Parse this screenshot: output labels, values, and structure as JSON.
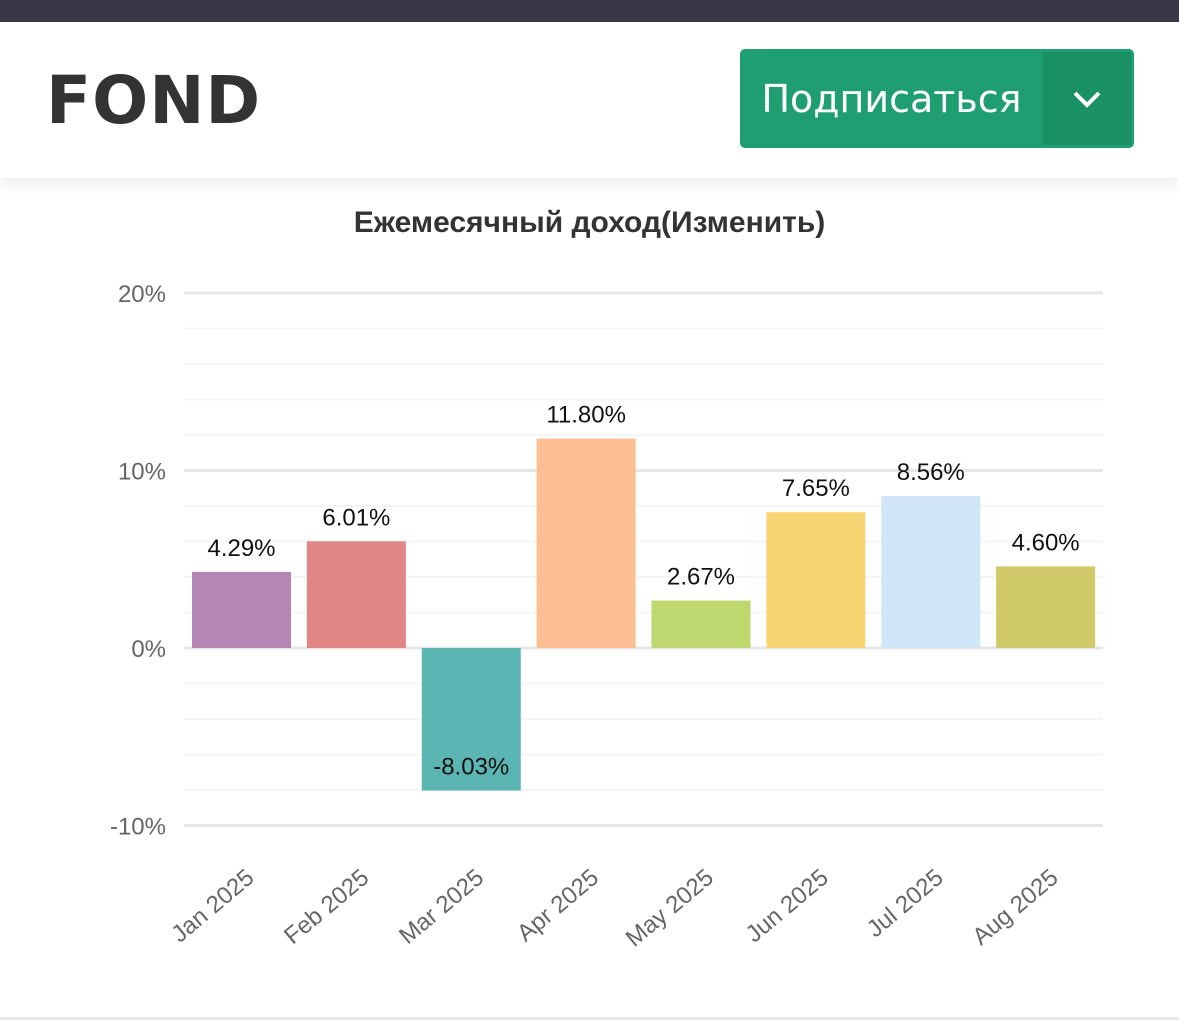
{
  "header": {
    "logo": "FOND",
    "subscribe_label": "Подписаться",
    "dropdown_icon": "chevron-down-icon",
    "accent": "#1f9e72"
  },
  "chart_data": {
    "type": "bar",
    "title": "Ежемесячный доход(Изменить)",
    "categories": [
      "Jan 2025",
      "Feb 2025",
      "Mar 2025",
      "Apr 2025",
      "May 2025",
      "Jun 2025",
      "Jul 2025",
      "Aug 2025"
    ],
    "values": [
      4.29,
      6.01,
      -8.03,
      11.8,
      2.67,
      7.65,
      8.56,
      4.6
    ],
    "data_labels": [
      "4.29%",
      "6.01%",
      "-8.03%",
      "11.80%",
      "2.67%",
      "7.65%",
      "8.56%",
      "4.60%"
    ],
    "colors": [
      "#b586b3",
      "#e18684",
      "#5bb5b3",
      "#febe94",
      "#bed86f",
      "#f6d572",
      "#d1e5f8",
      "#d1ca6a"
    ],
    "yticks": [
      20,
      10,
      0,
      -10
    ],
    "ytick_labels": [
      "20%",
      "10%",
      "0%",
      "-10%"
    ],
    "ylim": [
      -10,
      20
    ],
    "grid": true,
    "xlabel": "",
    "ylabel": ""
  }
}
